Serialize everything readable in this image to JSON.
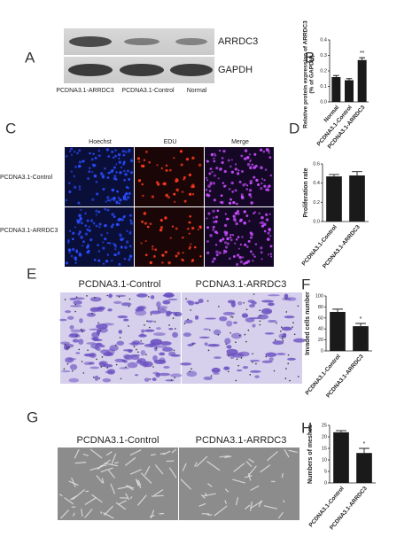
{
  "panel_labels": [
    "A",
    "B",
    "C",
    "D",
    "E",
    "F",
    "G",
    "H"
  ],
  "western_blot": {
    "bands": [
      "ARRDC3",
      "GAPDH"
    ],
    "lanes": [
      "PCDNA3.1-ARRDC3",
      "PCDNA3.1-Control",
      "Normal"
    ]
  },
  "edu_assay": {
    "channels": [
      "Hoechst",
      "EDU",
      "Merge"
    ],
    "rows": [
      "PCDNA3.1-Control",
      "PCDNA3.1-ARRDC3"
    ]
  },
  "invasion_assay": {
    "groups": [
      "PCDNA3.1-Control",
      "PCDNA3.1-ARRDC3"
    ]
  },
  "tube_formation": {
    "groups": [
      "PCDNA3.1-Control",
      "PCDNA3.1-ARRDC3"
    ]
  },
  "chart_data": [
    {
      "type": "bar",
      "y_label": [
        "Relative protein expression of ARRDC3",
        "(% of GAPDH)"
      ],
      "categories": [
        "Normal",
        "PCDNA3.1-Control",
        "PCDNA3.1-ARRDC3"
      ],
      "values": [
        0.16,
        0.14,
        0.27
      ],
      "errors": [
        0.01,
        0.01,
        0.015
      ],
      "significance": [
        null,
        null,
        "**"
      ],
      "color": "#1a1a1a",
      "ylim": [
        0,
        0.4
      ],
      "yticks": [
        {
          "value": 0,
          "label": "0.0"
        },
        0.1,
        0.2,
        0.3,
        0.4
      ]
    },
    {
      "type": "bar",
      "y_label": "Proliferation rate",
      "categories": [
        "PCDNA3.1-Control",
        "PCDNA3.1-ARRDC3"
      ],
      "values": [
        0.47,
        0.48
      ],
      "errors": [
        0.02,
        0.04
      ],
      "significance": [
        null,
        null
      ],
      "color": "#1a1a1a",
      "ylim": [
        0,
        0.6
      ],
      "yticks": [
        {
          "value": 0,
          "label": "0.0"
        },
        0.2,
        0.4,
        0.6
      ]
    },
    {
      "type": "bar",
      "y_label": "Invaded cells number",
      "categories": [
        "PCDNA3.1-Control",
        "PCDNA3.1-ARRDC3"
      ],
      "values": [
        71,
        45
      ],
      "errors": [
        5,
        5
      ],
      "significance": [
        null,
        "*"
      ],
      "color": "#1a1a1a",
      "ylim": [
        0,
        100
      ],
      "yticks": [
        0,
        20,
        40,
        60,
        80,
        100
      ]
    },
    {
      "type": "bar",
      "y_label": "Numbers of meshes",
      "categories": [
        "PCDNA3.1-Control",
        "PCDNA3.1-ARRDC3"
      ],
      "values": [
        22,
        13
      ],
      "errors": [
        0.7,
        2
      ],
      "significance": [
        null,
        "*"
      ],
      "color": "#1a1a1a",
      "ylim": [
        0,
        25
      ],
      "yticks": [
        0,
        5,
        10,
        15,
        20,
        25
      ]
    }
  ]
}
